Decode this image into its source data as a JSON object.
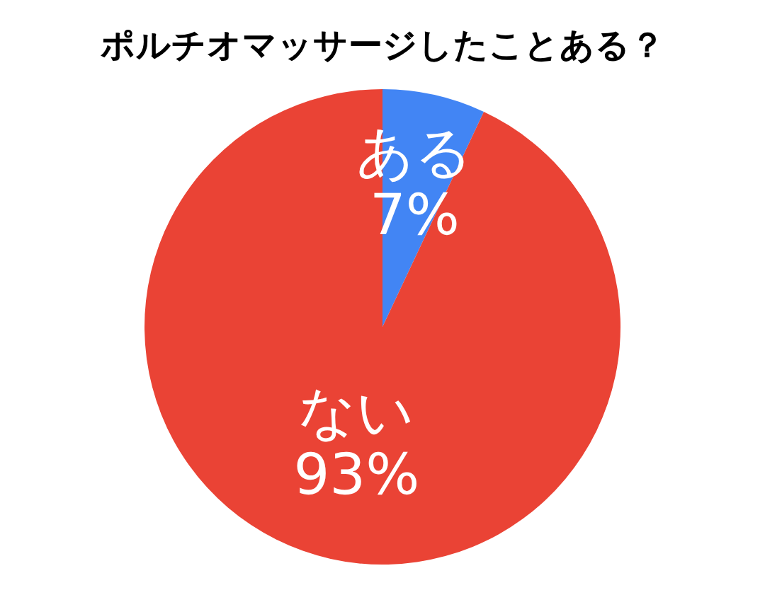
{
  "chart_data": {
    "type": "pie",
    "title": "ポルチオマッサージしたことある？",
    "categories": [
      "ある",
      "ない"
    ],
    "values": [
      7,
      93
    ],
    "value_labels": [
      "7%",
      "93%"
    ],
    "colors": [
      "#4285f4",
      "#ea4335"
    ]
  }
}
